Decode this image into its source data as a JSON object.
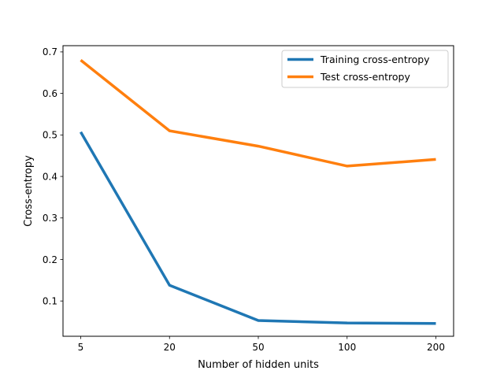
{
  "chart_data": {
    "type": "line",
    "title": "",
    "xlabel": "Number of hidden units",
    "ylabel": "Cross-entropy",
    "categories": [
      "5",
      "20",
      "50",
      "100",
      "200"
    ],
    "x_scale": "categorical",
    "ylim": [
      0.015,
      0.715
    ],
    "yticks": [
      "0.1",
      "0.2",
      "0.3",
      "0.4",
      "0.5",
      "0.6",
      "0.7"
    ],
    "grid": false,
    "legend_position": "top-right",
    "series": [
      {
        "name": "Training cross-entropy",
        "color": "#1f77b4",
        "values": [
          0.507,
          0.138,
          0.053,
          0.047,
          0.046
        ]
      },
      {
        "name": "Test cross-entropy",
        "color": "#ff7f0e",
        "values": [
          0.68,
          0.51,
          0.473,
          0.425,
          0.441
        ]
      }
    ]
  }
}
